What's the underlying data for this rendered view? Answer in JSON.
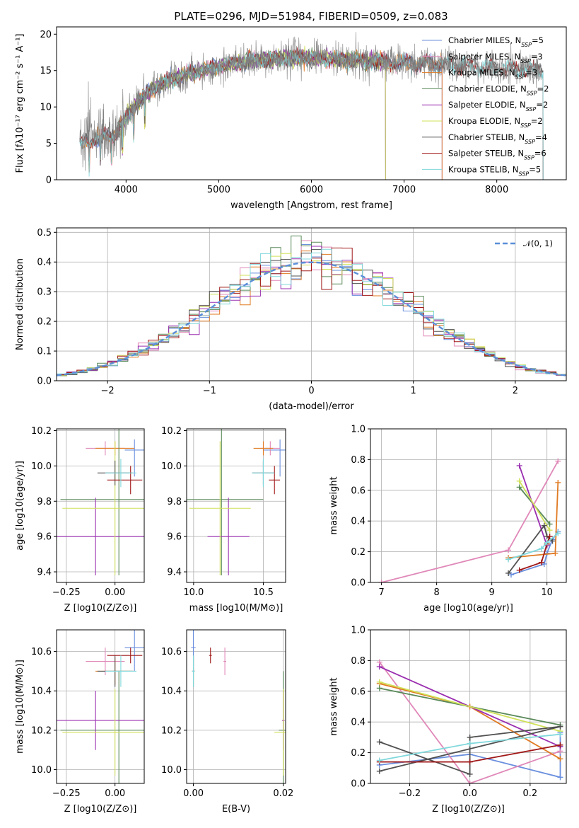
{
  "figure": {
    "title": "PLATE=0296, MJD=51984, FIBERID=0509, z=0.083"
  },
  "colors": {
    "Chabrier MILES": "#6a8fde",
    "Salpeter MILES": "#e088b8",
    "Kroupa MILES": "#e07a22",
    "Chabrier ELODIE": "#5a8a5a",
    "Salpeter ELODIE": "#9a2eb0",
    "Kroupa ELODIE": "#d0e058",
    "Chabrier STELIB": "#505050",
    "Salpeter STELIB": "#a01818",
    "Kroupa STELIB": "#80d8dc",
    "data": "#808080",
    "normal": "#5b8ed8"
  },
  "chart_data": [
    {
      "id": "spectrum",
      "type": "line",
      "title": "PLATE=0296, MJD=51984, FIBERID=0509, z=0.083",
      "xlabel": "wavelength [Angstrom, rest frame]",
      "ylabel": "Flux [fλ10⁻¹⁷ erg cm⁻² s⁻¹ A⁻¹]",
      "xlim": [
        3250,
        8750
      ],
      "ylim": [
        0,
        21
      ],
      "xticks": [
        4000,
        5000,
        6000,
        7000,
        8000
      ],
      "yticks": [
        0,
        5,
        10,
        15,
        20
      ],
      "legend_position": "top-right",
      "legend": [
        "Chabrier MILES, N_SSP=5",
        "Salpeter MILES, N_SSP=3",
        "Kroupa MILES, N_SSP=3",
        "Chabrier ELODIE, N_SSP=2",
        "Salpeter ELODIE, N_SSP=2",
        "Kroupa ELODIE, N_SSP=2",
        "Chabrier STELIB, N_SSP=4",
        "Salpeter STELIB, N_SSP=6",
        "Kroupa STELIB, N_SSP=5"
      ],
      "continuum": {
        "x": [
          3500,
          3600,
          3700,
          3800,
          3900,
          4000,
          4100,
          4200,
          4300,
          4400,
          4500,
          4700,
          5000,
          5300,
          5600,
          5900,
          6200,
          6500,
          6800,
          7100,
          7400,
          7700,
          8000,
          8300,
          8500
        ],
        "y": [
          5,
          5.5,
          5.5,
          6.2,
          6.5,
          8.5,
          10.3,
          11.5,
          12.6,
          13.3,
          13.8,
          14.6,
          15.6,
          16.3,
          16.6,
          16.8,
          16.6,
          16.4,
          16.2,
          16.0,
          15.9,
          15.6,
          15.4,
          15.2,
          14.9
        ]
      }
    },
    {
      "id": "residuals",
      "type": "line",
      "xlabel": "(data-model)/error",
      "ylabel": "Normed distribution",
      "xlim": [
        -2.5,
        2.5
      ],
      "ylim": [
        0,
        0.515
      ],
      "xticks": [
        -2,
        -1,
        0,
        1,
        2
      ],
      "yticks": [
        0,
        0.1,
        0.2,
        0.3,
        0.4,
        0.5
      ],
      "legend_position": "top-right",
      "series": [
        {
          "name": "N(0,1)",
          "function": "standard_normal_pdf"
        }
      ],
      "hist": {
        "bin_width": 0.1,
        "range": [
          -2.5,
          2.5
        ],
        "note_series": "one step histogram per library/IMF combination"
      }
    },
    {
      "id": "age_vs_Z",
      "type": "scatter",
      "xlabel": "Z [log10(Z/Z⊙)]",
      "ylabel": "age  [log10(age/yr)]",
      "xlim": [
        -0.3,
        0.15
      ],
      "ylim": [
        9.34,
        10.21
      ],
      "xticks": [
        -0.25,
        0.0
      ],
      "xtick_labels": [
        "−0.25",
        "0.00"
      ],
      "yticks": [
        9.4,
        9.6,
        9.8,
        10.0,
        10.2
      ]
    },
    {
      "id": "age_vs_mass",
      "type": "scatter",
      "xlabel": "mass [log10(M/M⊙)]",
      "ylabel": "",
      "xlim": [
        9.95,
        10.66
      ],
      "ylim": [
        9.34,
        10.21
      ],
      "xticks": [
        10.0,
        10.5
      ],
      "yticks": [
        9.4,
        9.6,
        9.8,
        10.0,
        10.2
      ]
    },
    {
      "id": "massweight_vs_age",
      "type": "line",
      "xlabel": "age  [log10(age/yr)]",
      "ylabel": "mass weight",
      "xlim": [
        6.8,
        10.35
      ],
      "ylim": [
        0,
        1.0
      ],
      "xticks": [
        7,
        8,
        9,
        10
      ],
      "yticks": [
        0,
        0.2,
        0.4,
        0.6,
        0.8,
        1.0
      ]
    },
    {
      "id": "mass_vs_Z",
      "type": "scatter",
      "xlabel": "Z [log10(Z/Z⊙)]",
      "ylabel": "mass [log10(M/M⊙)]",
      "xlim": [
        -0.3,
        0.15
      ],
      "ylim": [
        9.93,
        10.71
      ],
      "xticks": [
        -0.25,
        0.0
      ],
      "xtick_labels": [
        "−0.25",
        "0.00"
      ],
      "yticks": [
        10.0,
        10.2,
        10.4,
        10.6
      ]
    },
    {
      "id": "mass_vs_ebv",
      "type": "scatter",
      "xlabel": "E(B-V)",
      "ylabel": "",
      "xlim": [
        -0.0015,
        0.0205
      ],
      "ylim": [
        9.93,
        10.71
      ],
      "xticks": [
        0.0,
        0.02
      ],
      "xtick_labels": [
        "0.00",
        "0.02"
      ],
      "yticks": [
        10.0,
        10.2,
        10.4,
        10.6
      ]
    },
    {
      "id": "massweight_vs_Z",
      "type": "line",
      "xlabel": "Z [log10(Z/Z⊙)]",
      "ylabel": "mass weight",
      "xlim": [
        -0.33,
        0.32
      ],
      "ylim": [
        0,
        1.0
      ],
      "xticks": [
        -0.2,
        0.0,
        0.2
      ],
      "xtick_labels": [
        "−0.2",
        "0.0",
        "0.2"
      ],
      "yticks": [
        0,
        0.2,
        0.4,
        0.6,
        0.8,
        1.0
      ]
    }
  ],
  "fits": [
    {
      "name": "Chabrier MILES",
      "Z": 0.1,
      "Zerr": [
        0.05,
        0.05
      ],
      "age": 10.09,
      "ageerr": [
        0.15,
        0.06
      ],
      "mass": 10.62,
      "masserr": [
        0.12,
        0.09
      ],
      "ebv": 0.0,
      "ebv_err": 0.0005,
      "mw_age": {
        "age": [
          9.35,
          9.95,
          10.0,
          10.1,
          10.2
        ],
        "w": [
          0.05,
          0.12,
          0.19,
          0.28,
          0.33
        ]
      },
      "mw_Z": {
        "Z": [
          -0.3,
          0.0,
          0.3,
          0.3,
          0.3
        ],
        "w": [
          0.12,
          0.19,
          0.04,
          0.24,
          0.33
        ]
      }
    },
    {
      "name": "Salpeter MILES",
      "Z": -0.05,
      "Zerr": [
        0.1,
        0.1
      ],
      "age": 10.1,
      "ageerr": [
        0.04,
        0.04
      ],
      "mass": 10.55,
      "masserr": [
        0.07,
        0.07
      ],
      "ebv": 0.007,
      "ebv_err": 0.0003,
      "mw_age": {
        "age": [
          7.0,
          9.3,
          10.2
        ],
        "w": [
          0.0,
          0.21,
          0.79
        ]
      },
      "mw_Z": {
        "Z": [
          -0.3,
          0.0,
          0.3
        ],
        "w": [
          0.79,
          0.0,
          0.21
        ]
      }
    },
    {
      "name": "Kroupa MILES",
      "Z": 0.0,
      "Zerr": [
        0.1,
        0.1
      ],
      "age": 10.1,
      "ageerr": [
        0.04,
        0.04
      ],
      "mass": 10.5,
      "masserr": [
        0.07,
        0.07
      ],
      "ebv": 0.0,
      "ebv_err": 0.0003,
      "mw_age": {
        "age": [
          9.3,
          10.15,
          10.2
        ],
        "w": [
          0.16,
          0.19,
          0.65
        ]
      },
      "mw_Z": {
        "Z": [
          -0.3,
          0.0,
          0.3
        ],
        "w": [
          0.65,
          0.5,
          0.16
        ]
      }
    },
    {
      "name": "Chabrier ELODIE",
      "Z": 0.02,
      "Zerr": [
        0.3,
        0.3
      ],
      "age": 9.81,
      "ageerr": [
        0.43,
        0.43
      ],
      "mass": 10.2,
      "masserr": [
        0.3,
        0.3
      ],
      "ebv": 0.02,
      "ebv_err": 0.001,
      "mw_age": {
        "age": [
          9.5,
          10.05
        ],
        "w": [
          0.62,
          0.38
        ]
      },
      "mw_Z": {
        "Z": [
          -0.3,
          0.3
        ],
        "w": [
          0.62,
          0.38
        ]
      }
    },
    {
      "name": "Salpeter ELODIE",
      "Z": -0.1,
      "Zerr": [
        0.25,
        0.25
      ],
      "age": 9.6,
      "ageerr": [
        0.22,
        0.22
      ],
      "mass": 10.25,
      "masserr": [
        0.15,
        0.15
      ],
      "ebv": 0.02,
      "ebv_err": 0.0003,
      "mw_age": {
        "age": [
          9.5,
          10.0
        ],
        "w": [
          0.76,
          0.24
        ]
      },
      "mw_Z": {
        "Z": [
          -0.3,
          0.3
        ],
        "w": [
          0.76,
          0.24
        ]
      }
    },
    {
      "name": "Kroupa ELODIE",
      "Z": 0.0,
      "Zerr": [
        0.27,
        0.27
      ],
      "age": 9.76,
      "ageerr": [
        0.38,
        0.38
      ],
      "mass": 10.19,
      "masserr": [
        0.22,
        0.22
      ],
      "ebv": 0.02,
      "ebv_err": 0.002,
      "mw_age": {
        "age": [
          9.5,
          10.05
        ],
        "w": [
          0.66,
          0.34
        ]
      },
      "mw_Z": {
        "Z": [
          -0.3,
          0.3
        ],
        "w": [
          0.66,
          0.34
        ]
      }
    },
    {
      "name": "Chabrier STELIB",
      "Z": 0.0,
      "Zerr": [
        0.09,
        0.09
      ],
      "age": 9.96,
      "ageerr": [
        0.07,
        0.07
      ],
      "mass": 10.5,
      "masserr": [
        0.08,
        0.08
      ],
      "ebv": 0.0,
      "ebv_err": 0.0003,
      "mw_age": {
        "age": [
          9.3,
          9.95,
          10.0,
          10.1
        ],
        "w": [
          0.06,
          0.37,
          0.3,
          0.27
        ]
      },
      "mw_Z": {
        "Z": [
          -0.3,
          0.0,
          0.0,
          0.3,
          -0.3
        ],
        "w": [
          0.27,
          0.06,
          0.3,
          0.37,
          0.08
        ]
      }
    },
    {
      "name": "Salpeter STELIB",
      "Z": 0.08,
      "Zerr": [
        0.12,
        0.06
      ],
      "age": 9.92,
      "ageerr": [
        0.08,
        0.08
      ],
      "mass": 10.58,
      "masserr": [
        0.04,
        0.04
      ],
      "ebv": 0.0038,
      "ebv_err": 0.0003,
      "mw_age": {
        "age": [
          9.5,
          9.9,
          10.0,
          10.05
        ],
        "w": [
          0.08,
          0.13,
          0.25,
          0.3
        ]
      },
      "mw_Z": {
        "Z": [
          -0.3,
          0.0,
          0.3
        ],
        "w": [
          0.14,
          0.14,
          0.25
        ]
      }
    },
    {
      "name": "Kroupa STELIB",
      "Z": 0.03,
      "Zerr": [
        0.08,
        0.08
      ],
      "age": 9.96,
      "ageerr": [
        0.08,
        0.08
      ],
      "mass": 10.5,
      "masserr": [
        0.08,
        0.08
      ],
      "ebv": 0.0,
      "ebv_err": 0.0003,
      "mw_age": {
        "age": [
          9.3,
          9.9,
          10.0,
          10.2
        ],
        "w": [
          0.15,
          0.22,
          0.26,
          0.32
        ]
      },
      "mw_Z": {
        "Z": [
          -0.3,
          0.0,
          0.3
        ],
        "w": [
          0.15,
          0.26,
          0.32
        ]
      }
    }
  ]
}
